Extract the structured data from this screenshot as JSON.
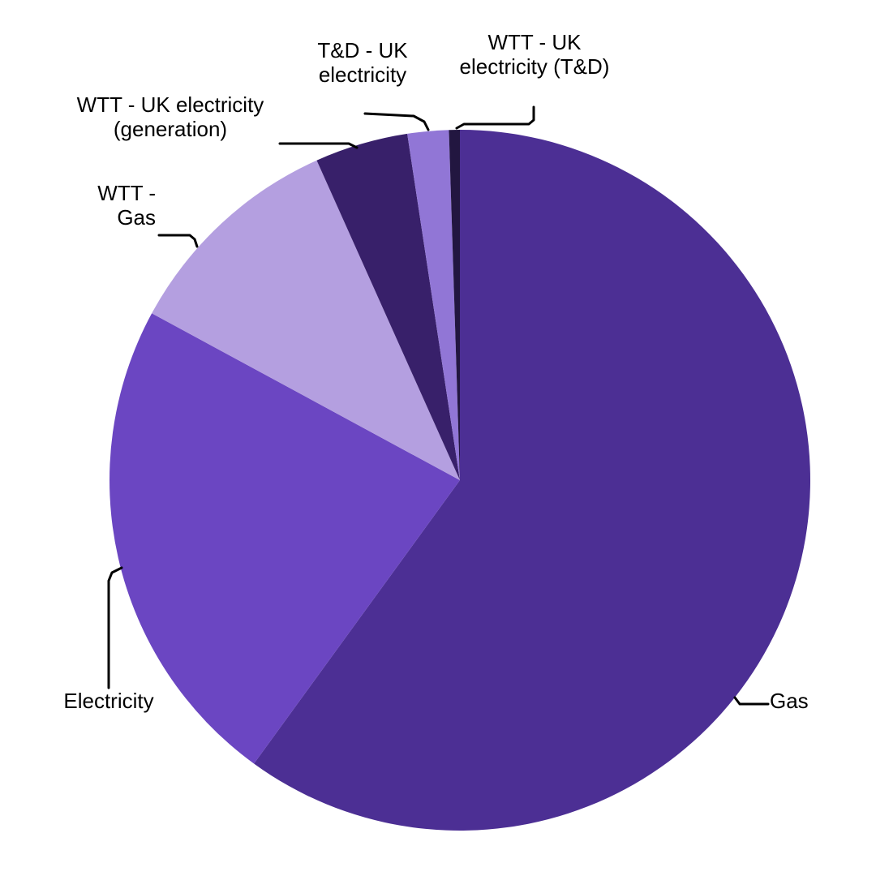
{
  "chart_data": {
    "type": "pie",
    "title": "",
    "slices": [
      {
        "label": "Gas",
        "lines": [
          "Gas"
        ],
        "value": 60.0,
        "color": "#4c2f94"
      },
      {
        "label": "Electricity",
        "lines": [
          "Electricity"
        ],
        "value": 22.9,
        "color": "#6b46c2"
      },
      {
        "label": "WTT - Gas",
        "lines": [
          "WTT -",
          "Gas"
        ],
        "value": 10.4,
        "color": "#b49fe0"
      },
      {
        "label": "WTT - UK electricity (generation)",
        "lines": [
          "WTT - UK electricity",
          "(generation)"
        ],
        "value": 4.3,
        "color": "#38206a"
      },
      {
        "label": "T&D - UK electricity",
        "lines": [
          "T&D - UK",
          "electricity"
        ],
        "value": 1.9,
        "color": "#9176d6"
      },
      {
        "label": "WTT - UK electricity (T&D)",
        "lines": [
          "WTT - UK",
          "electricity (T&D)"
        ],
        "value": 0.5,
        "color": "#221640"
      }
    ]
  }
}
